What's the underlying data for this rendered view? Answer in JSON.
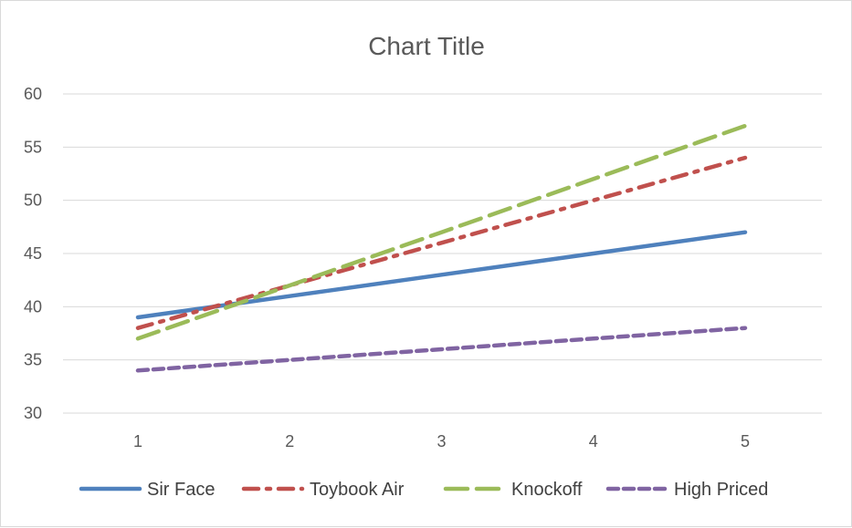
{
  "chart_data": {
    "type": "line",
    "title": "Chart Title",
    "xlabel": "",
    "ylabel": "",
    "x": [
      1,
      2,
      3,
      4,
      5
    ],
    "ylim": [
      30,
      60
    ],
    "yticks": [
      30,
      35,
      40,
      45,
      50,
      55,
      60
    ],
    "grid": true,
    "legend": "bottom",
    "series": [
      {
        "name": "Sir Face",
        "values": [
          39,
          41,
          43,
          45,
          47
        ],
        "color": "#4f81bd",
        "dash": "solid"
      },
      {
        "name": "Toybook Air",
        "values": [
          38,
          42,
          46,
          50,
          54
        ],
        "color": "#c0504d",
        "dash": "long-dash-dot"
      },
      {
        "name": "Knockoff",
        "values": [
          37,
          42,
          47,
          52,
          57
        ],
        "color": "#9bbb59",
        "dash": "long-dash"
      },
      {
        "name": "High Priced",
        "values": [
          34,
          35,
          36,
          37,
          38
        ],
        "color": "#8064a2",
        "dash": "dash"
      }
    ]
  }
}
